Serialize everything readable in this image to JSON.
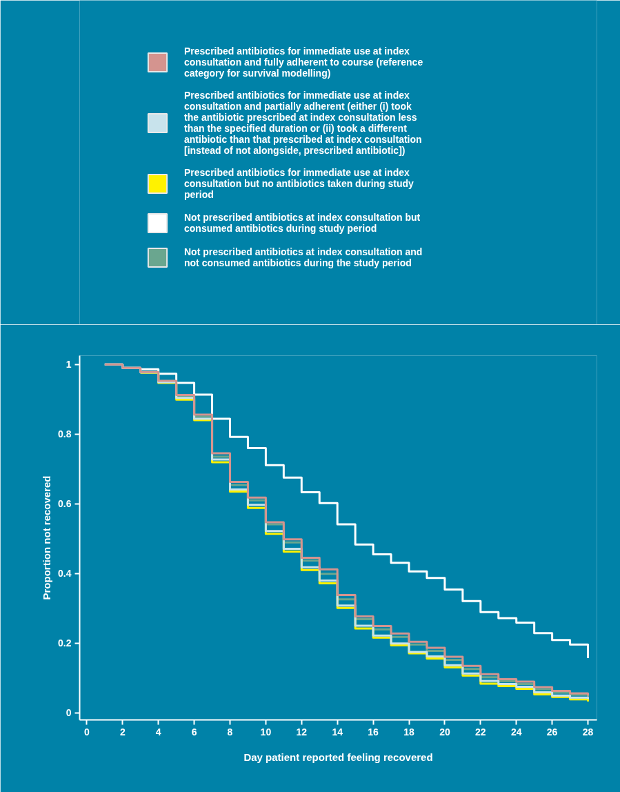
{
  "chart_data": {
    "type": "step",
    "xlabel": "Day patient reported feeling recovered",
    "ylabel": "Proportion not recovered",
    "x": [
      1,
      2,
      3,
      4,
      5,
      6,
      7,
      8,
      9,
      10,
      11,
      12,
      13,
      14,
      15,
      16,
      17,
      18,
      19,
      20,
      21,
      22,
      23,
      24,
      25,
      26,
      27,
      28
    ],
    "series": [
      {
        "name": "Prescribed antibiotics for immediate use at index consultation and fully adherent to course (reference category for survival modelling)",
        "color": "#d4948f",
        "values": [
          1.0,
          0.99,
          0.978,
          0.953,
          0.912,
          0.856,
          0.745,
          0.663,
          0.618,
          0.547,
          0.498,
          0.445,
          0.412,
          0.338,
          0.277,
          0.249,
          0.228,
          0.204,
          0.187,
          0.161,
          0.135,
          0.111,
          0.097,
          0.09,
          0.074,
          0.063,
          0.056,
          0.05
        ]
      },
      {
        "name": "Prescribed antibiotics for immediate use at index consultation and partially adherent (either (i) took the antibiotic prescribed at index consultation less than the specified duration or (ii) took a different antibiotic than that prescribed at index consultation [instead of not alongside, prescribed antibiotic])",
        "color": "#c8e3ec",
        "values": [
          1.0,
          0.99,
          0.977,
          0.949,
          0.904,
          0.844,
          0.727,
          0.641,
          0.597,
          0.522,
          0.471,
          0.418,
          0.38,
          0.308,
          0.25,
          0.222,
          0.199,
          0.175,
          0.162,
          0.137,
          0.113,
          0.092,
          0.083,
          0.075,
          0.059,
          0.05,
          0.044,
          0.04
        ]
      },
      {
        "name": "Prescribed antibiotics for immediate use at index consultation but no antibiotics taken during study period",
        "color": "#fff200",
        "values": [
          null,
          null,
          0.976,
          0.947,
          0.899,
          0.84,
          0.719,
          0.635,
          0.588,
          0.514,
          0.463,
          0.41,
          0.372,
          0.301,
          0.242,
          0.216,
          0.194,
          0.171,
          0.156,
          0.131,
          0.107,
          0.084,
          0.077,
          0.069,
          0.053,
          0.046,
          0.039,
          0.033
        ]
      },
      {
        "name": "Not prescribed antibiotics at index consultation but consumed antibiotics during study period",
        "color": "#ffffff",
        "values": [
          1.0,
          0.99,
          0.986,
          0.973,
          0.947,
          0.913,
          0.844,
          0.792,
          0.76,
          0.711,
          0.675,
          0.633,
          0.602,
          0.541,
          0.483,
          0.455,
          0.431,
          0.406,
          0.387,
          0.354,
          0.321,
          0.289,
          0.272,
          0.259,
          0.229,
          0.209,
          0.196,
          0.157
        ]
      },
      {
        "name": "Not prescribed antibiotics at index consultation and not consumed antibiotics during the study period",
        "color": "#6aa68f",
        "values": [
          1.0,
          0.99,
          0.977,
          0.951,
          0.908,
          0.85,
          0.735,
          0.654,
          0.61,
          0.541,
          0.489,
          0.437,
          0.399,
          0.326,
          0.269,
          0.24,
          0.218,
          0.196,
          0.178,
          0.152,
          0.126,
          0.102,
          0.091,
          0.083,
          0.068,
          0.058,
          0.052,
          0.045
        ]
      }
    ],
    "xlim": [
      -0.4,
      28.5
    ],
    "ylim": [
      -0.02,
      1.025
    ],
    "xticks": [
      0,
      2,
      4,
      6,
      8,
      10,
      12,
      14,
      16,
      18,
      20,
      22,
      24,
      26,
      28
    ],
    "yticks": [
      0,
      0.2,
      0.4,
      0.6,
      0.8,
      1
    ],
    "grid": false,
    "legend": "top",
    "marker": "none",
    "line_style": "solid"
  }
}
